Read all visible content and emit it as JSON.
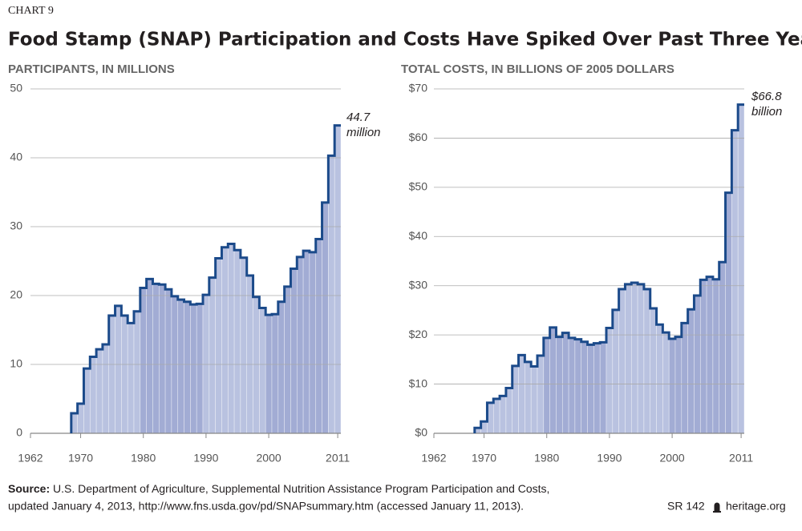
{
  "header": {
    "label": "CHART 9",
    "title": "Food Stamp (SNAP) Participation and Costs Have Spiked Over Past Three Years"
  },
  "chart_data": [
    {
      "type": "step",
      "subtitle": "PARTICIPANTS, IN MILLIONS",
      "x": [
        1969,
        1970,
        1971,
        1972,
        1973,
        1974,
        1975,
        1976,
        1977,
        1978,
        1979,
        1980,
        1981,
        1982,
        1983,
        1984,
        1985,
        1986,
        1987,
        1988,
        1989,
        1990,
        1991,
        1992,
        1993,
        1994,
        1995,
        1996,
        1997,
        1998,
        1999,
        2000,
        2001,
        2002,
        2003,
        2004,
        2005,
        2006,
        2007,
        2008,
        2009,
        2010,
        2011
      ],
      "values": [
        2.9,
        4.3,
        9.4,
        11.1,
        12.2,
        12.9,
        17.1,
        18.5,
        17.1,
        16.0,
        17.7,
        21.1,
        22.4,
        21.7,
        21.6,
        20.9,
        19.9,
        19.4,
        19.1,
        18.7,
        18.8,
        20.1,
        22.6,
        25.4,
        27.0,
        27.5,
        26.6,
        25.5,
        22.9,
        19.8,
        18.2,
        17.2,
        17.3,
        19.1,
        21.3,
        23.9,
        25.6,
        26.5,
        26.3,
        28.2,
        33.5,
        40.3,
        44.7
      ],
      "annotation": [
        "44.7",
        "million"
      ],
      "xlim": [
        1962,
        2011.5
      ],
      "xticks": [
        1962,
        1970,
        1980,
        1990,
        2000,
        2011
      ],
      "ylim": [
        0,
        50
      ],
      "yticks": [
        0,
        10,
        20,
        30,
        40,
        50
      ],
      "color": "#1b4a8a",
      "fill_color": "#b9c2e0",
      "alt_fill_color": "#a2acd4",
      "grid": true
    },
    {
      "type": "step",
      "subtitle": "TOTAL COSTS, IN BILLIONS OF 2005 DOLLARS",
      "x": [
        1969,
        1970,
        1971,
        1972,
        1973,
        1974,
        1975,
        1976,
        1977,
        1978,
        1979,
        1980,
        1981,
        1982,
        1983,
        1984,
        1985,
        1986,
        1987,
        1988,
        1989,
        1990,
        1991,
        1992,
        1993,
        1994,
        1995,
        1996,
        1997,
        1998,
        1999,
        2000,
        2001,
        2002,
        2003,
        2004,
        2005,
        2006,
        2007,
        2008,
        2009,
        2010,
        2011
      ],
      "values": [
        1.1,
        2.4,
        6.2,
        7.0,
        7.6,
        9.2,
        13.7,
        15.9,
        14.5,
        13.6,
        15.8,
        19.4,
        21.5,
        19.6,
        20.4,
        19.4,
        19.1,
        18.6,
        18.0,
        18.3,
        18.5,
        21.4,
        25.1,
        29.3,
        30.3,
        30.6,
        30.3,
        29.3,
        25.4,
        22.1,
        20.5,
        19.2,
        19.6,
        22.4,
        25.2,
        28.0,
        31.2,
        31.8,
        31.3,
        34.8,
        48.9,
        61.6,
        66.8
      ],
      "annotation": [
        "$66.8",
        "billion"
      ],
      "xlim": [
        1962,
        2011.5
      ],
      "xticks": [
        1962,
        1970,
        1980,
        1990,
        2000,
        2011
      ],
      "ylim": [
        0,
        70
      ],
      "yticks": [
        {
          "value": 0,
          "label": "$0"
        },
        {
          "value": 10,
          "label": "$10"
        },
        {
          "value": 20,
          "label": "$20"
        },
        {
          "value": 30,
          "label": "$30"
        },
        {
          "value": 40,
          "label": "$40"
        },
        {
          "value": 50,
          "label": "$50"
        },
        {
          "value": 60,
          "label": "$60"
        },
        {
          "value": 70,
          "label": "$70"
        }
      ],
      "color": "#1b4a8a",
      "fill_color": "#b9c2e0",
      "alt_fill_color": "#a2acd4",
      "grid": true
    }
  ],
  "footer": {
    "source_label": "Source:",
    "source_line1": "U.S. Department of Agriculture, Supplemental Nutrition Assistance Program Participation and Costs,",
    "source_line2": "updated January 4, 2013, http://www.fns.usda.gov/pd/SNAPsummary.htm (accessed January 11, 2013).",
    "code": "SR 142",
    "site": "heritage.org"
  }
}
